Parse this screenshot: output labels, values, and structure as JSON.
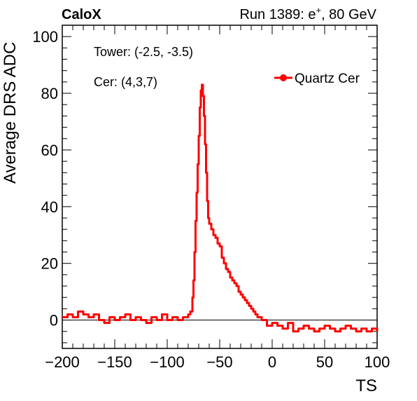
{
  "header": {
    "experiment": "CaloX",
    "run_prefix": "Run 1389: e",
    "run_sup": "+",
    "run_suffix": ", 80 GeV"
  },
  "annotations": {
    "tower": "Tower: (-2.5, -3.5)",
    "cer": "Cer: (4,3,7)"
  },
  "chart_data": {
    "type": "line",
    "xlabel": "TS",
    "ylabel": "Average DRS ADC",
    "xlim": [
      -200,
      100
    ],
    "ylim": [
      -10,
      104
    ],
    "x_ticks": [
      -200,
      -150,
      -100,
      -50,
      0,
      50,
      100
    ],
    "y_ticks": [
      0,
      20,
      40,
      60,
      80,
      100
    ],
    "grid": false,
    "legend_position": "top-right",
    "colors": {
      "series": "#ff0000",
      "axis": "#000000",
      "baseline": "#000000"
    },
    "baseline_y": 0,
    "series": [
      {
        "name": "Quartz Cer",
        "x": [
          -200,
          -195,
          -190,
          -185,
          -180,
          -175,
          -170,
          -165,
          -160,
          -155,
          -150,
          -145,
          -140,
          -135,
          -130,
          -125,
          -120,
          -115,
          -110,
          -105,
          -100,
          -95,
          -90,
          -85,
          -80,
          -78,
          -76,
          -75,
          -74,
          -73,
          -72,
          -71,
          -70,
          -69,
          -68,
          -67,
          -66,
          -65,
          -64,
          -63,
          -62,
          -61,
          -60,
          -58,
          -56,
          -54,
          -52,
          -50,
          -48,
          -46,
          -44,
          -42,
          -40,
          -38,
          -36,
          -34,
          -32,
          -30,
          -28,
          -26,
          -24,
          -22,
          -20,
          -18,
          -16,
          -14,
          -12,
          -10,
          -5,
          0,
          5,
          10,
          15,
          20,
          25,
          30,
          35,
          40,
          45,
          50,
          55,
          60,
          65,
          70,
          75,
          80,
          85,
          90,
          95,
          100
        ],
        "values": [
          1,
          2,
          1,
          3,
          2,
          1,
          2,
          0,
          -1,
          1,
          0,
          1,
          2,
          0,
          1,
          0,
          -1,
          1,
          0,
          2,
          0,
          1,
          0,
          1,
          2,
          3,
          8,
          14,
          24,
          35,
          45,
          55,
          65,
          75,
          81,
          83,
          79,
          72,
          62,
          52,
          42,
          36,
          34,
          32,
          30,
          29,
          27,
          26,
          22,
          20,
          18,
          17,
          15,
          14,
          13,
          12,
          10,
          9,
          8,
          7,
          6,
          5,
          4,
          3,
          2,
          1,
          1,
          0,
          -2,
          -1,
          -2,
          -3,
          -1,
          -4,
          -3,
          -2,
          -3,
          -4,
          -3,
          -2,
          -3,
          -4,
          -3,
          -2,
          -3,
          -4,
          -3,
          -4,
          -3,
          -4
        ]
      }
    ]
  }
}
